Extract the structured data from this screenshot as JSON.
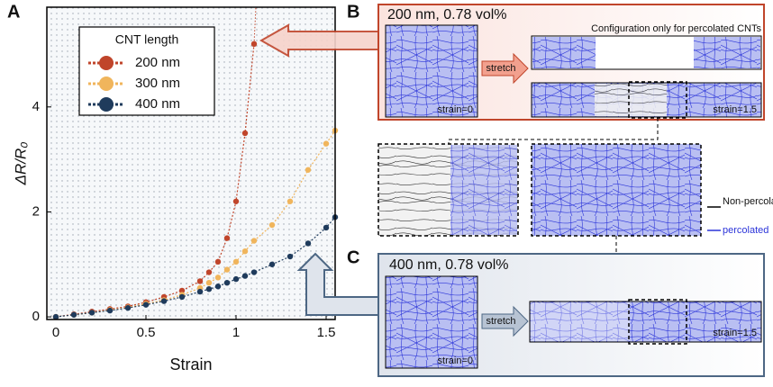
{
  "chart_data": {
    "type": "line",
    "x_label": "Strain",
    "y_label": "ΔR/R₀",
    "legend_title": "CNT length",
    "legend": "upper left",
    "x": [
      0,
      0.1,
      0.2,
      0.3,
      0.4,
      0.5,
      0.6,
      0.7,
      0.8,
      0.85,
      0.9,
      0.95,
      1.0,
      1.05,
      1.1,
      1.2,
      1.3,
      1.4,
      1.5,
      1.55
    ],
    "series": [
      {
        "name": "200 nm",
        "color": "#c0452b",
        "values": [
          0,
          0.05,
          0.1,
          0.15,
          0.2,
          0.28,
          0.38,
          0.5,
          0.68,
          0.85,
          1.05,
          1.5,
          2.2,
          3.5,
          5.2,
          null,
          null,
          null,
          null,
          null
        ]
      },
      {
        "name": "300 nm",
        "color": "#f0b55c",
        "values": [
          0,
          0.04,
          0.08,
          0.13,
          0.18,
          0.25,
          0.32,
          0.42,
          0.55,
          0.65,
          0.75,
          0.9,
          1.05,
          1.25,
          1.45,
          1.75,
          2.2,
          2.8,
          3.3,
          3.55
        ]
      },
      {
        "name": "400 nm",
        "color": "#1f3b5c",
        "values": [
          0,
          0.04,
          0.08,
          0.12,
          0.17,
          0.23,
          0.3,
          0.38,
          0.48,
          0.53,
          0.58,
          0.65,
          0.72,
          0.78,
          0.85,
          1.0,
          1.15,
          1.4,
          1.7,
          1.9
        ]
      }
    ],
    "xlim": [
      -0.05,
      1.55
    ],
    "ylim": [
      -0.05,
      5.9
    ],
    "xticks": [
      0,
      0.5,
      1,
      1.5
    ],
    "yticks": [
      0,
      2,
      4
    ]
  },
  "panel_labels": [
    "A",
    "B",
    "C"
  ],
  "panel_b": {
    "title": "200 nm, 0.78 vol%",
    "note": "Configuration only for percolated CNTs",
    "arrow": "stretch",
    "strain_start": "strain=0",
    "strain_end": "strain=1.5"
  },
  "zoom_legend": [
    "Non-percolated",
    "percolated"
  ],
  "panel_c": {
    "title": "400 nm, 0.78 vol%",
    "arrow": "stretch",
    "strain_start": "strain=0",
    "strain_end": "strain=1.5"
  }
}
